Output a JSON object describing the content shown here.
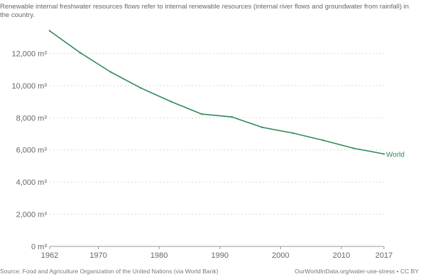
{
  "subtitle": "Renewable internal freshwater resources flows refer to internal renewable resources (internal river flows and groundwater from rainfall) in the country.",
  "source_note": "Source: Food and Agriculture Organization of the United Nations (via World Bank)",
  "credit_note": "OurWorldInData.org/water-use-stress • CC BY",
  "colors": {
    "series": "#2e8b57",
    "grid": "#d9d9d9",
    "axis": "#999999"
  },
  "chart_data": {
    "type": "line",
    "title": "",
    "subtitle": "Renewable internal freshwater resources flows refer to internal renewable resources (internal river flows and groundwater from rainfall) in the country.",
    "xlabel": "",
    "ylabel": "",
    "x": [
      1962,
      1967,
      1972,
      1977,
      1982,
      1987,
      1992,
      1997,
      2002,
      2007,
      2012,
      2017
    ],
    "series": [
      {
        "name": "World",
        "values": [
          13400,
          12050,
          10850,
          9850,
          9000,
          8230,
          8050,
          7400,
          7050,
          6600,
          6100,
          5750
        ]
      }
    ],
    "xlim": [
      1962,
      2017
    ],
    "ylim": [
      0,
      14000
    ],
    "x_ticks": [
      1962,
      1970,
      1980,
      1990,
      2000,
      2010,
      2017
    ],
    "x_tick_labels": [
      "1962",
      "1970",
      "1980",
      "1990",
      "2000",
      "2010",
      "2017"
    ],
    "y_ticks": [
      0,
      2000,
      4000,
      6000,
      8000,
      10000,
      12000
    ],
    "y_tick_labels": [
      "0 m³",
      "2,000 m³",
      "4,000 m³",
      "6,000 m³",
      "8,000 m³",
      "10,000 m³",
      "12,000 m³"
    ],
    "grid": "horizontal-dotted",
    "legend": "end-of-line label"
  }
}
